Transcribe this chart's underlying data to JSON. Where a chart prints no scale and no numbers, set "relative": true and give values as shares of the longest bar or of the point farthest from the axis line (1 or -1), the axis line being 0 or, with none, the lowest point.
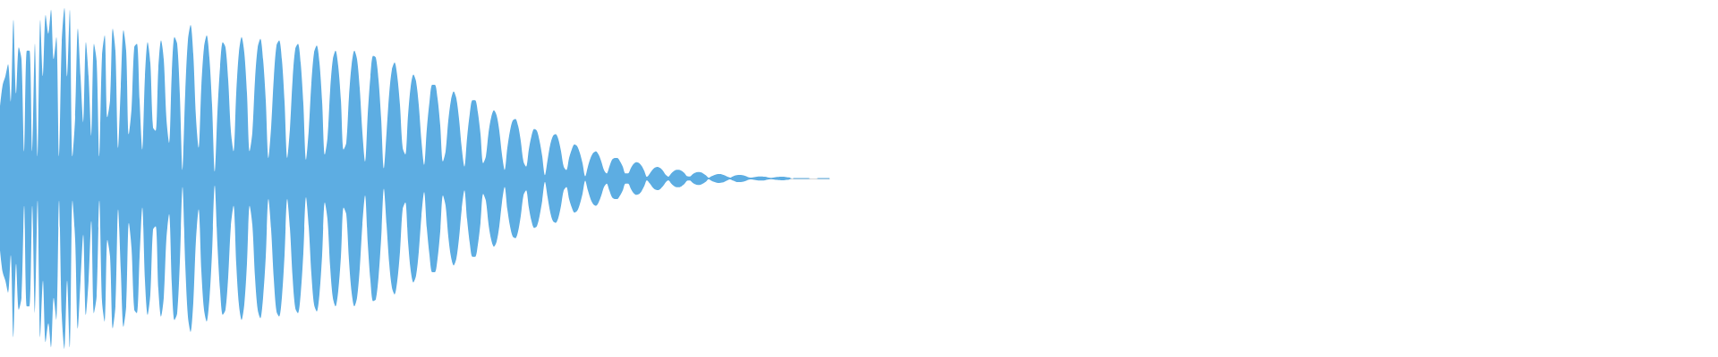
{
  "chart_data": {
    "type": "area",
    "relative": true,
    "categories": [
      null,
      null,
      null,
      null,
      null,
      null,
      null,
      null,
      null,
      null,
      null,
      null,
      null,
      null,
      null,
      null,
      null,
      null,
      null,
      null,
      null,
      null,
      null,
      null,
      null,
      null,
      null,
      null,
      null,
      null,
      null,
      null,
      null,
      null,
      null,
      null,
      null,
      null,
      null,
      null,
      null,
      null,
      null,
      null,
      null,
      null,
      null,
      null,
      null,
      null,
      null,
      null,
      null,
      null,
      null,
      null,
      null,
      null,
      null,
      null,
      null,
      null,
      null,
      null,
      null,
      null,
      null,
      null,
      null,
      null,
      null,
      null,
      null,
      null,
      null,
      null,
      null,
      null,
      null,
      null,
      null,
      null,
      null,
      null,
      null,
      null,
      null,
      null,
      null,
      null,
      null,
      null,
      null,
      null,
      null,
      null,
      null,
      null,
      null,
      null,
      null,
      null,
      null,
      null,
      null,
      null,
      null,
      null,
      null,
      null,
      null,
      null,
      null,
      null,
      null,
      null,
      null,
      null,
      null,
      null,
      null,
      null,
      null,
      null,
      null,
      null,
      null,
      null,
      null,
      null,
      null,
      null,
      null,
      null,
      null,
      null,
      null,
      null,
      null,
      null,
      null,
      null,
      null,
      null,
      null,
      null,
      null,
      null,
      null,
      null,
      null,
      null,
      null,
      null,
      null,
      null,
      null,
      null,
      null,
      null,
      null,
      null,
      null,
      null,
      null,
      null,
      null,
      null,
      null,
      null,
      null,
      null,
      null,
      null,
      null,
      null,
      null,
      null,
      null,
      null,
      null,
      null,
      null,
      null,
      null,
      null,
      null,
      null,
      null,
      null,
      null,
      null,
      null,
      null,
      null,
      null,
      null,
      null,
      null,
      null,
      null,
      null,
      null,
      null,
      null,
      null,
      null,
      null,
      null,
      null,
      null,
      null,
      null,
      null,
      null,
      null,
      null,
      null,
      null,
      null,
      null,
      null,
      null,
      null,
      null,
      null,
      null,
      null,
      null,
      null,
      null,
      null,
      null,
      null,
      null,
      null,
      null,
      null,
      null,
      null,
      null,
      null,
      null,
      null,
      null,
      null,
      null,
      null,
      null,
      null,
      null,
      null,
      null,
      null,
      null,
      null,
      null,
      null,
      null,
      null,
      null,
      null,
      null,
      null,
      null,
      null,
      null,
      null,
      null,
      null,
      null,
      null,
      null,
      null,
      null,
      null,
      null,
      null,
      null,
      null,
      null,
      null,
      null,
      null,
      null,
      null,
      null,
      null,
      null,
      null,
      null,
      null,
      null,
      null,
      null,
      null,
      null,
      null,
      null,
      null,
      null,
      null,
      null,
      null,
      null,
      null,
      null,
      null,
      null,
      null
    ],
    "series": [
      {
        "color": "#5dade2",
        "values": [
          0.42,
          0.55,
          0.6,
          0.67,
          0.45,
          0.93,
          0.5,
          0.77,
          0.7,
          0.16,
          0.75,
          0.75,
          0.16,
          0.79,
          0.13,
          0.93,
          0.6,
          0.96,
          0.85,
          0.99,
          0.7,
          0.83,
          0.13,
          0.8,
          1,
          0.6,
          0.99,
          0.13,
          0.36,
          0.88,
          0.6,
          0.33,
          0.8,
          0.6,
          0.25,
          0.79,
          0.69,
          0.13,
          0.72,
          0.84,
          0.36,
          0.46,
          0.88,
          0.75,
          0.18,
          0.54,
          0.87,
          0.75,
          0.26,
          0.41,
          0.77,
          0.79,
          0.46,
          0.17,
          0.6,
          0.8,
          0.68,
          0.3,
          0.28,
          0.65,
          0.81,
          0.7,
          0.35,
          0.21,
          0.62,
          0.83,
          0.79,
          0.49,
          0.05,
          0.5,
          0.81,
          0.9,
          0.73,
          0.36,
          0.18,
          0.54,
          0.77,
          0.84,
          0.71,
          0.43,
          0.04,
          0.39,
          0.66,
          0.8,
          0.77,
          0.58,
          0.28,
          0.16,
          0.5,
          0.74,
          0.83,
          0.74,
          0.5,
          0.16,
          0.27,
          0.58,
          0.77,
          0.82,
          0.7,
          0.46,
          0.12,
          0.3,
          0.59,
          0.78,
          0.81,
          0.7,
          0.45,
          0.12,
          0.29,
          0.58,
          0.76,
          0.79,
          0.68,
          0.44,
          0.11,
          0.28,
          0.56,
          0.74,
          0.78,
          0.68,
          0.45,
          0.14,
          0.24,
          0.52,
          0.7,
          0.75,
          0.66,
          0.46,
          0.17,
          0.21,
          0.48,
          0.67,
          0.75,
          0.7,
          0.53,
          0.27,
          0.1,
          0.38,
          0.6,
          0.72,
          0.71,
          0.58,
          0.35,
          0.06,
          0.27,
          0.5,
          0.64,
          0.68,
          0.6,
          0.43,
          0.18,
          0.14,
          0.37,
          0.54,
          0.61,
          0.57,
          0.43,
          0.22,
          0.08,
          0.29,
          0.45,
          0.55,
          0.55,
          0.47,
          0.31,
          0.1,
          0.16,
          0.34,
          0.46,
          0.51,
          0.47,
          0.35,
          0.18,
          0.07,
          0.24,
          0.38,
          0.46,
          0.46,
          0.39,
          0.26,
          0.09,
          0.13,
          0.27,
          0.36,
          0.4,
          0.37,
          0.28,
          0.14,
          0.05,
          0.18,
          0.28,
          0.34,
          0.35,
          0.31,
          0.22,
          0.1,
          0.07,
          0.17,
          0.25,
          0.29,
          0.28,
          0.22,
          0.13,
          0.02,
          0.11,
          0.2,
          0.25,
          0.26,
          0.23,
          0.16,
          0.07,
          0.05,
          0.12,
          0.17,
          0.2,
          0.19,
          0.15,
          0.09,
          0.013,
          0.07,
          0.12,
          0.15,
          0.16,
          0.14,
          0.1,
          0.05,
          0.03,
          0.07,
          0.11,
          0.12,
          0.12,
          0.1,
          0.07,
          0.03,
          0.03,
          0.06,
          0.085,
          0.096,
          0.092,
          0.074,
          0.045,
          0.01,
          0.028,
          0.05,
          0.064,
          0.068,
          0.061,
          0.045,
          0.022,
          0.011,
          0.029,
          0.043,
          0.051,
          0.051,
          0.044,
          0.031,
          0.013,
          0.012,
          0.025,
          0.034,
          0.038,
          0.036,
          0.029,
          0.018,
          0.004,
          0.013,
          0.02,
          0.025,
          0.026,
          0.024,
          0.018,
          0.01,
          0.005,
          0.012,
          0.018,
          0.021,
          0.021,
          0.018,
          0.013,
          0.006,
          0.005,
          0.008,
          0.011,
          0.012,
          0.012,
          0.01,
          0.007,
          0.004,
          0.005,
          0.008,
          0.009,
          0.01,
          0.01,
          0.008,
          0.006,
          0,
          0.003,
          0.003,
          0.003,
          0.003,
          0.003,
          0.003,
          0,
          0,
          0,
          0.003,
          0.003,
          0.003,
          0.003,
          0.003
        ]
      },
      {
        "color": "#5dade2",
        "values": [
          -0.42,
          -0.55,
          -0.6,
          -0.67,
          -0.45,
          -0.93,
          -0.5,
          -0.77,
          -0.7,
          -0.16,
          -0.75,
          -0.75,
          -0.16,
          -0.79,
          -0.13,
          -0.93,
          -0.6,
          -0.96,
          -0.85,
          -0.99,
          -0.7,
          -0.83,
          -0.13,
          -0.8,
          -1,
          -0.6,
          -0.99,
          -0.13,
          -0.36,
          -0.88,
          -0.6,
          -0.33,
          -0.8,
          -0.6,
          -0.25,
          -0.79,
          -0.69,
          -0.13,
          -0.72,
          -0.84,
          -0.36,
          -0.46,
          -0.88,
          -0.75,
          -0.18,
          -0.54,
          -0.87,
          -0.75,
          -0.26,
          -0.41,
          -0.77,
          -0.79,
          -0.46,
          -0.17,
          -0.6,
          -0.8,
          -0.68,
          -0.3,
          -0.28,
          -0.65,
          -0.81,
          -0.7,
          -0.35,
          -0.21,
          -0.62,
          -0.83,
          -0.79,
          -0.49,
          -0.05,
          -0.5,
          -0.81,
          -0.9,
          -0.73,
          -0.36,
          -0.18,
          -0.54,
          -0.77,
          -0.84,
          -0.71,
          -0.43,
          -0.04,
          -0.39,
          -0.66,
          -0.8,
          -0.77,
          -0.58,
          -0.28,
          -0.16,
          -0.5,
          -0.74,
          -0.83,
          -0.74,
          -0.5,
          -0.16,
          -0.27,
          -0.58,
          -0.77,
          -0.82,
          -0.7,
          -0.46,
          -0.12,
          -0.3,
          -0.59,
          -0.78,
          -0.81,
          -0.7,
          -0.45,
          -0.12,
          -0.29,
          -0.58,
          -0.76,
          -0.79,
          -0.68,
          -0.44,
          -0.11,
          -0.28,
          -0.56,
          -0.74,
          -0.78,
          -0.68,
          -0.45,
          -0.14,
          -0.24,
          -0.52,
          -0.7,
          -0.75,
          -0.66,
          -0.46,
          -0.17,
          -0.21,
          -0.48,
          -0.67,
          -0.75,
          -0.7,
          -0.53,
          -0.27,
          -0.1,
          -0.38,
          -0.6,
          -0.72,
          -0.71,
          -0.58,
          -0.35,
          -0.06,
          -0.27,
          -0.5,
          -0.64,
          -0.68,
          -0.6,
          -0.43,
          -0.18,
          -0.14,
          -0.37,
          -0.54,
          -0.61,
          -0.57,
          -0.43,
          -0.22,
          -0.08,
          -0.29,
          -0.45,
          -0.55,
          -0.55,
          -0.47,
          -0.31,
          -0.1,
          -0.16,
          -0.34,
          -0.46,
          -0.51,
          -0.47,
          -0.35,
          -0.18,
          -0.07,
          -0.24,
          -0.38,
          -0.46,
          -0.46,
          -0.39,
          -0.26,
          -0.09,
          -0.13,
          -0.27,
          -0.36,
          -0.4,
          -0.37,
          -0.28,
          -0.14,
          -0.05,
          -0.18,
          -0.28,
          -0.34,
          -0.35,
          -0.31,
          -0.22,
          -0.1,
          -0.07,
          -0.17,
          -0.25,
          -0.29,
          -0.28,
          -0.22,
          -0.13,
          -0.02,
          -0.11,
          -0.2,
          -0.25,
          -0.26,
          -0.23,
          -0.16,
          -0.07,
          -0.05,
          -0.12,
          -0.17,
          -0.2,
          -0.19,
          -0.15,
          -0.09,
          -0.013,
          -0.07,
          -0.12,
          -0.15,
          -0.16,
          -0.14,
          -0.1,
          -0.05,
          -0.03,
          -0.07,
          -0.11,
          -0.12,
          -0.12,
          -0.1,
          -0.07,
          -0.03,
          -0.03,
          -0.06,
          -0.085,
          -0.096,
          -0.092,
          -0.074,
          -0.045,
          -0.01,
          -0.028,
          -0.05,
          -0.064,
          -0.068,
          -0.061,
          -0.045,
          -0.022,
          -0.011,
          -0.029,
          -0.043,
          -0.051,
          -0.051,
          -0.044,
          -0.031,
          -0.013,
          -0.012,
          -0.025,
          -0.034,
          -0.038,
          -0.036,
          -0.029,
          -0.018,
          -0.004,
          -0.013,
          -0.02,
          -0.025,
          -0.026,
          -0.024,
          -0.018,
          -0.01,
          -0.005,
          -0.012,
          -0.018,
          -0.021,
          -0.021,
          -0.018,
          -0.013,
          -0.006,
          -0.005,
          -0.008,
          -0.011,
          -0.012,
          -0.012,
          -0.01,
          -0.007,
          -0.004,
          -0.005,
          -0.008,
          -0.009,
          -0.01,
          -0.01,
          -0.008,
          -0.006,
          0,
          -0.003,
          -0.003,
          -0.003,
          -0.003,
          -0.003,
          -0.003,
          0,
          0,
          0,
          -0.003,
          -0.003,
          -0.003,
          -0.003,
          -0.003
        ]
      }
    ]
  }
}
